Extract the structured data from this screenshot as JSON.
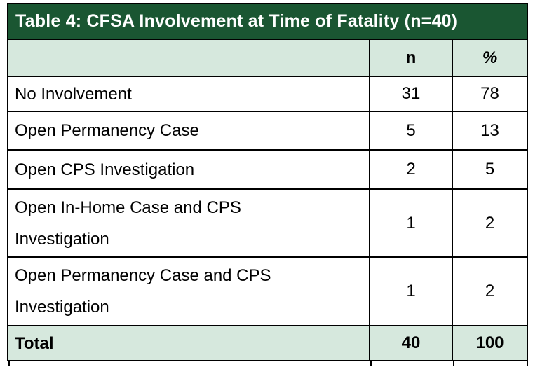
{
  "table": {
    "title": "Table 4: CFSA Involvement at Time of Fatality (n=40)",
    "header": {
      "n": "n",
      "pct": "%"
    },
    "rows": [
      {
        "label": "No Involvement",
        "n": "31",
        "pct": "78"
      },
      {
        "label": "Open Permanency Case",
        "n": "5",
        "pct": "13"
      },
      {
        "label": "Open CPS Investigation",
        "n": "2",
        "pct": "5"
      },
      {
        "label": "Open In-Home Case and CPS Investigation",
        "label_lines": [
          "Open In-Home Case and CPS",
          "Investigation"
        ],
        "n": "1",
        "pct": "2"
      },
      {
        "label": "Open Permanency Case and CPS Investigation",
        "label_lines": [
          "Open Permanency Case and CPS",
          "Investigation"
        ],
        "n": "1",
        "pct": "2"
      }
    ],
    "total_row": {
      "label": "Total",
      "n": "40",
      "pct": "100"
    },
    "colors": {
      "title_bg": "#1A5632",
      "title_text": "#FFFFFF",
      "band_bg": "#D6E8DD",
      "border": "#000000",
      "body_text": "#000000"
    }
  },
  "chart_data": {
    "type": "table",
    "title": "Table 4: CFSA Involvement at Time of Fatality (n=40)",
    "columns": [
      "",
      "n",
      "%"
    ],
    "rows": [
      [
        "No Involvement",
        31,
        78
      ],
      [
        "Open Permanency Case",
        5,
        13
      ],
      [
        "Open CPS Investigation",
        2,
        5
      ],
      [
        "Open In-Home Case and CPS Investigation",
        1,
        2
      ],
      [
        "Open Permanency Case and CPS Investigation",
        1,
        2
      ],
      [
        "Total",
        40,
        100
      ]
    ]
  }
}
